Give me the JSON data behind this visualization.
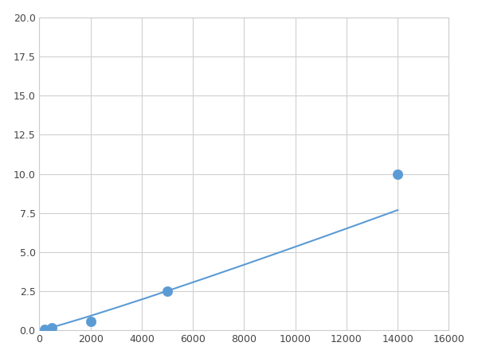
{
  "x": [
    200,
    500,
    2000,
    5000,
    14000
  ],
  "y": [
    0.1,
    0.2,
    0.6,
    2.5,
    10.0
  ],
  "line_color": "#5b9bd5",
  "marker_color": "#5b9bd5",
  "marker_size": 5,
  "xlim": [
    0,
    16000
  ],
  "ylim": [
    0,
    20
  ],
  "xticks": [
    0,
    2000,
    4000,
    6000,
    8000,
    10000,
    12000,
    14000,
    16000
  ],
  "yticks": [
    0.0,
    2.5,
    5.0,
    7.5,
    10.0,
    12.5,
    15.0,
    17.5,
    20.0
  ],
  "grid": true,
  "background_color": "#ffffff",
  "figure_width": 6.0,
  "figure_height": 4.5,
  "dpi": 100
}
